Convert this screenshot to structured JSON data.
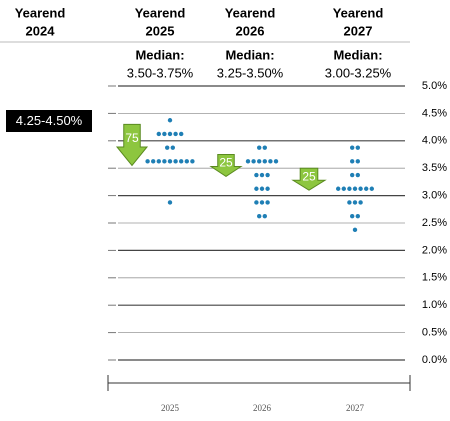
{
  "chart_data": {
    "type": "dotplot",
    "columns": [
      {
        "title": [
          "Yearend",
          "2024"
        ],
        "current": "4.25-4.50%"
      },
      {
        "title": [
          "Yearend",
          "2025"
        ],
        "median": [
          "Median:",
          "3.50-3.75%"
        ]
      },
      {
        "title": [
          "Yearend",
          "2026"
        ],
        "median": [
          "Median:",
          "3.25-3.50%"
        ]
      },
      {
        "title": [
          "Yearend",
          "2027"
        ],
        "median": [
          "Median:",
          "3.00-3.25%"
        ]
      }
    ],
    "categories": [
      "2025",
      "2026",
      "2027"
    ],
    "dots": [
      [
        4.375,
        4.125,
        4.125,
        4.125,
        4.125,
        4.125,
        3.875,
        3.875,
        3.625,
        3.625,
        3.625,
        3.625,
        3.625,
        3.625,
        3.625,
        3.625,
        3.625,
        2.875
      ],
      [
        3.875,
        3.875,
        3.625,
        3.625,
        3.625,
        3.625,
        3.625,
        3.625,
        3.375,
        3.375,
        3.375,
        3.125,
        3.125,
        3.125,
        2.875,
        2.875,
        2.875,
        2.625,
        2.625
      ],
      [
        3.875,
        3.875,
        3.625,
        3.625,
        3.375,
        3.375,
        3.125,
        3.125,
        3.125,
        3.125,
        3.125,
        3.125,
        3.125,
        2.875,
        2.875,
        2.875,
        2.625,
        2.625,
        2.375
      ]
    ],
    "color": "#1f7fb5",
    "arrows": [
      "75",
      "25",
      "25"
    ],
    "arrow_color": "#8dc63f",
    "ylim": [
      0,
      5
    ],
    "yticks": [
      {
        "value": 5,
        "label": "5.0%"
      },
      {
        "value": 4.5,
        "label": "4.5%"
      },
      {
        "value": 4,
        "label": "4.0%"
      },
      {
        "value": 3.5,
        "label": "3.5%"
      },
      {
        "value": 3,
        "label": "3.0%"
      },
      {
        "value": 2.5,
        "label": "2.5%"
      },
      {
        "value": 2,
        "label": "2.0%"
      },
      {
        "value": 1.5,
        "label": "1.5%"
      },
      {
        "value": 1,
        "label": "1.0%"
      },
      {
        "value": 0.5,
        "label": "0.5%"
      },
      {
        "value": 0,
        "label": "0.0%"
      }
    ],
    "grid": true
  }
}
